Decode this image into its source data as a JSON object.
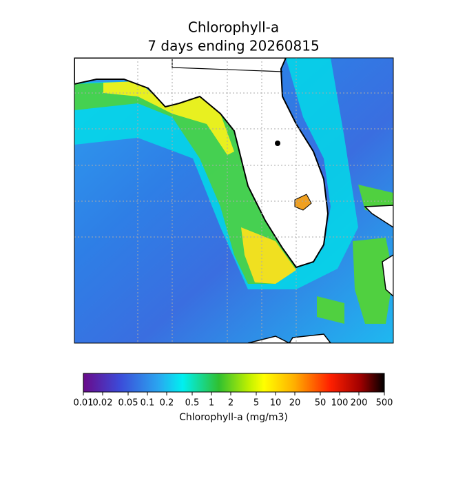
{
  "title": "Chlorophyll-a",
  "subtitle": "7 days ending 20260815",
  "colorbar": {
    "label": "Chlorophyll-a (mg/m3)",
    "scale": "log",
    "lim": [
      0.01,
      500
    ],
    "ticks": [
      0.01,
      0.02,
      0.05,
      0.1,
      0.2,
      0.5,
      1,
      2,
      5,
      10,
      20,
      50,
      100,
      200,
      500
    ]
  }
}
